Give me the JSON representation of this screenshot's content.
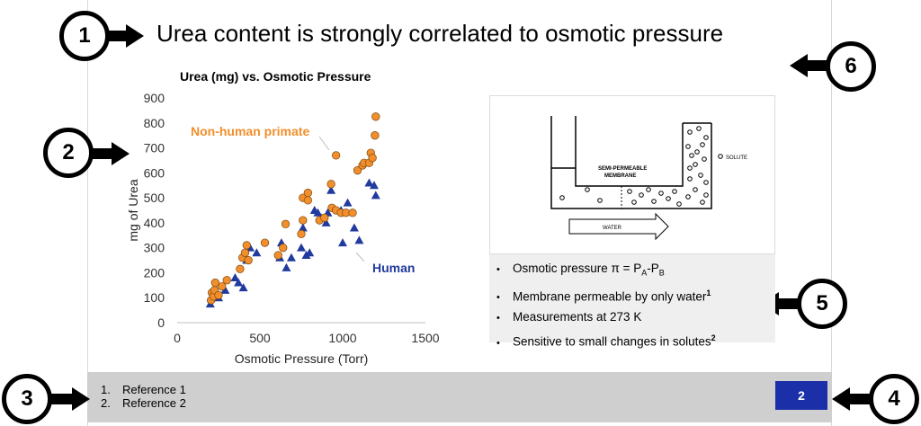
{
  "slide": {
    "title": "Urea content is strongly correlated to osmotic pressure",
    "page_number": "2",
    "footer_color": "#cfcfcf",
    "page_badge_color": "#1b30a8"
  },
  "callouts": [
    "1",
    "2",
    "3",
    "4",
    "5",
    "6"
  ],
  "references": [
    {
      "num": "1.",
      "text": "Reference 1"
    },
    {
      "num": "2.",
      "text": "Reference 2"
    }
  ],
  "chart_data": {
    "type": "scatter",
    "title": "Urea (mg) vs. Osmotic Pressure",
    "xlabel": "Osmotic Pressure (Torr)",
    "ylabel": "mg of Urea",
    "xlim": [
      0,
      1500
    ],
    "ylim": [
      0,
      900
    ],
    "xticks": [
      0,
      500,
      1000,
      1500
    ],
    "yticks": [
      0,
      100,
      200,
      300,
      400,
      500,
      600,
      700,
      800,
      900
    ],
    "grid": false,
    "series": [
      {
        "name": "Non-human primate",
        "color": "#f28e2b",
        "marker": "circle",
        "points": [
          [
            205,
            90
          ],
          [
            210,
            120
          ],
          [
            220,
            105
          ],
          [
            225,
            130
          ],
          [
            230,
            160
          ],
          [
            250,
            110
          ],
          [
            270,
            145
          ],
          [
            300,
            170
          ],
          [
            380,
            215
          ],
          [
            395,
            260
          ],
          [
            410,
            280
          ],
          [
            420,
            310
          ],
          [
            430,
            250
          ],
          [
            530,
            320
          ],
          [
            610,
            270
          ],
          [
            640,
            300
          ],
          [
            655,
            395
          ],
          [
            750,
            355
          ],
          [
            760,
            410
          ],
          [
            760,
            500
          ],
          [
            790,
            520
          ],
          [
            790,
            490
          ],
          [
            860,
            410
          ],
          [
            890,
            420
          ],
          [
            930,
            555
          ],
          [
            935,
            460
          ],
          [
            960,
            450
          ],
          [
            960,
            670
          ],
          [
            990,
            440
          ],
          [
            1020,
            440
          ],
          [
            1060,
            440
          ],
          [
            1090,
            610
          ],
          [
            1120,
            630
          ],
          [
            1130,
            640
          ],
          [
            1160,
            640
          ],
          [
            1170,
            680
          ],
          [
            1180,
            660
          ],
          [
            1195,
            750
          ],
          [
            1200,
            825
          ]
        ]
      },
      {
        "name": "Human",
        "color": "#203a9e",
        "marker": "triangle",
        "points": [
          [
            200,
            75
          ],
          [
            205,
            100
          ],
          [
            220,
            110
          ],
          [
            250,
            100
          ],
          [
            290,
            130
          ],
          [
            350,
            180
          ],
          [
            370,
            160
          ],
          [
            400,
            140
          ],
          [
            420,
            250
          ],
          [
            440,
            300
          ],
          [
            480,
            280
          ],
          [
            620,
            260
          ],
          [
            630,
            320
          ],
          [
            660,
            220
          ],
          [
            690,
            260
          ],
          [
            750,
            300
          ],
          [
            760,
            380
          ],
          [
            780,
            270
          ],
          [
            800,
            280
          ],
          [
            830,
            450
          ],
          [
            850,
            440
          ],
          [
            870,
            420
          ],
          [
            900,
            400
          ],
          [
            910,
            440
          ],
          [
            930,
            530
          ],
          [
            990,
            450
          ],
          [
            1000,
            320
          ],
          [
            1030,
            480
          ],
          [
            1070,
            380
          ],
          [
            1100,
            330
          ],
          [
            1160,
            560
          ],
          [
            1190,
            550
          ],
          [
            1200,
            510
          ]
        ]
      }
    ],
    "annotations": [
      {
        "text": "Non-human primate",
        "color": "#f28e2b"
      },
      {
        "text": "Human",
        "color": "#203a9e"
      }
    ]
  },
  "diagram": {
    "membrane_label_1": "SEMI-PERMEABLE",
    "membrane_label_2": "MEMBRANE",
    "solute_label": "SOLUTE",
    "water_label": "WATER"
  },
  "bullets": {
    "b1_prefix": "Osmotic pressure π = P",
    "b1_sub_a": "A",
    "b1_mid": "-P",
    "b1_sub_b": "B",
    "b2_text": "Membrane permeable by only water",
    "b2_sup": "1",
    "b3_text": "Measurements at 273 K",
    "b4_text": "Sensitive to small changes in solutes",
    "b4_sup": "2",
    "bullet_char": "•"
  }
}
